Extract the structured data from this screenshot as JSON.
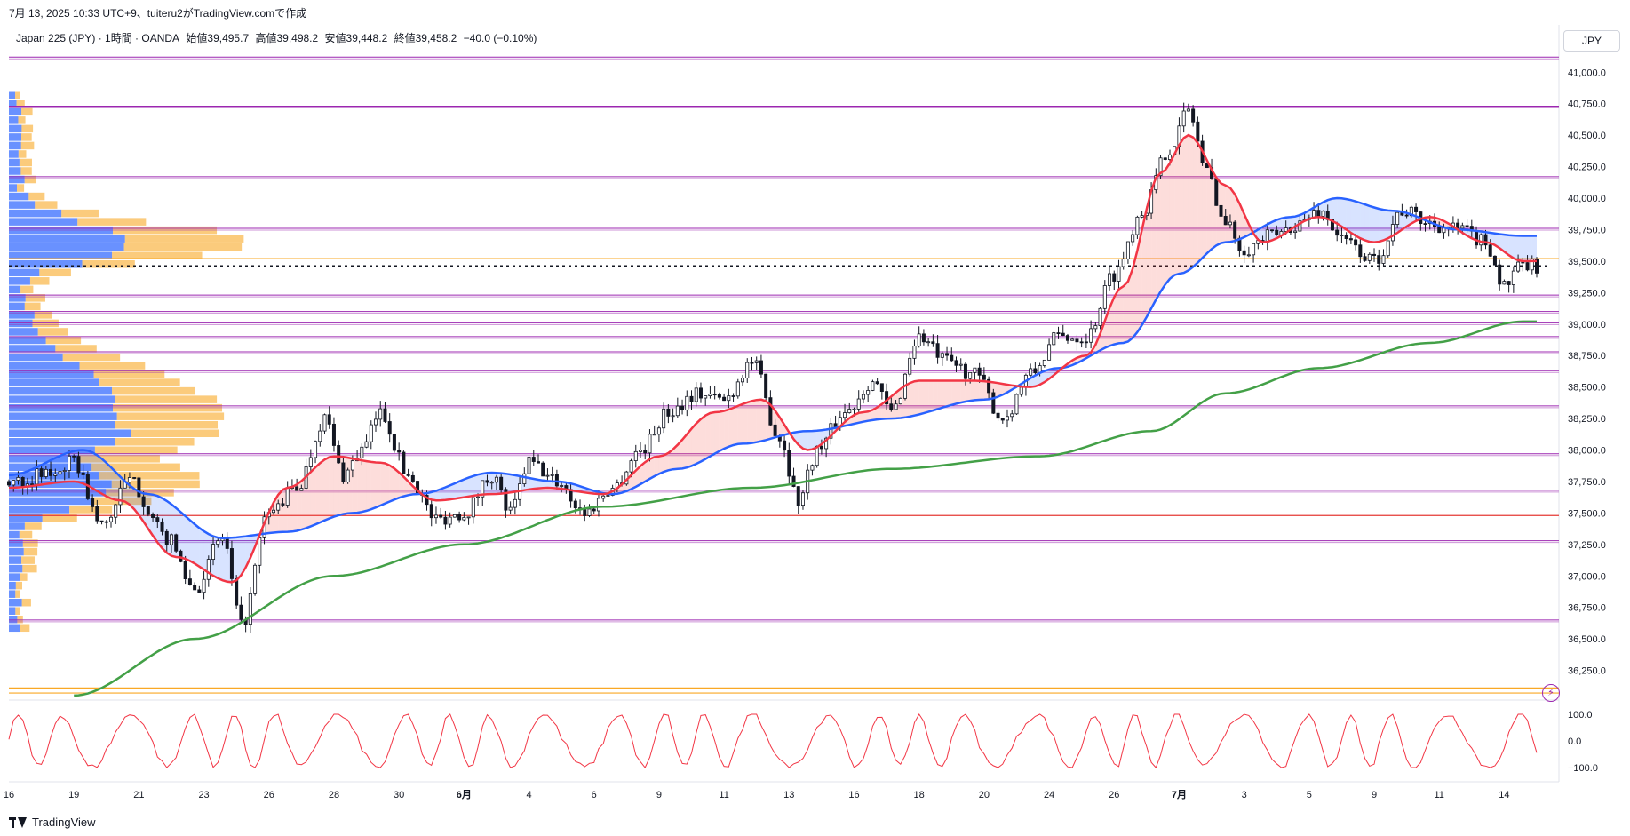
{
  "caption": "7月 13, 2025 10:33 UTC+9、tuiteru2がTradingView.comで作成",
  "legend": {
    "symbol": "Japan 225 (JPY) · 1時間 · OANDA",
    "open": "始値39,495.7",
    "high": "高値39,498.2",
    "low": "安値39,448.2",
    "close": "終値39,458.2",
    "change": "−40.0 (−0.10%)"
  },
  "currency_button": "JPY",
  "footer": {
    "brand": "TradingView"
  },
  "chart_data": {
    "type": "line",
    "price_ylim": [
      36000,
      41150
    ],
    "price_ticks": [
      "41,000.0",
      "40,750.0",
      "40,500.0",
      "40,250.0",
      "40,000.0",
      "39,750.0",
      "39,500.0",
      "39,250.0",
      "39,000.0",
      "38,750.0",
      "38,500.0",
      "38,250.0",
      "38,000.0",
      "37,750.0",
      "37,500.0",
      "37,250.0",
      "37,000.0",
      "36,750.0",
      "36,500.0",
      "36,250.0"
    ],
    "price_tick_values": [
      41000,
      40750,
      40500,
      40250,
      40000,
      39750,
      39500,
      39250,
      39000,
      38750,
      38500,
      38250,
      38000,
      37750,
      37500,
      37250,
      37000,
      36750,
      36500,
      36250
    ],
    "x_labels": [
      "16",
      "19",
      "21",
      "23",
      "26",
      "28",
      "30",
      "6月",
      "4",
      "6",
      "9",
      "11",
      "13",
      "16",
      "18",
      "20",
      "24",
      "26",
      "7月",
      "3",
      "5",
      "9",
      "11",
      "14"
    ],
    "x_label_index": [
      0,
      14,
      28,
      42,
      56,
      70,
      84,
      98,
      112,
      126,
      140,
      154,
      168,
      182,
      196,
      210,
      224,
      238,
      252,
      266,
      280,
      294,
      308,
      322
    ],
    "x_total_bars": 330,
    "close_series_anchors": [
      [
        0,
        37750
      ],
      [
        8,
        37800
      ],
      [
        14,
        37900
      ],
      [
        20,
        37400
      ],
      [
        26,
        37750
      ],
      [
        34,
        37300
      ],
      [
        40,
        36900
      ],
      [
        46,
        37300
      ],
      [
        50,
        36600
      ],
      [
        56,
        37500
      ],
      [
        62,
        37700
      ],
      [
        68,
        38250
      ],
      [
        72,
        37800
      ],
      [
        76,
        38000
      ],
      [
        80,
        38300
      ],
      [
        86,
        37800
      ],
      [
        92,
        37450
      ],
      [
        98,
        37500
      ],
      [
        104,
        37800
      ],
      [
        108,
        37500
      ],
      [
        112,
        37900
      ],
      [
        118,
        37750
      ],
      [
        124,
        37500
      ],
      [
        130,
        37700
      ],
      [
        136,
        38000
      ],
      [
        142,
        38300
      ],
      [
        148,
        38450
      ],
      [
        154,
        38400
      ],
      [
        160,
        38700
      ],
      [
        166,
        38100
      ],
      [
        170,
        37600
      ],
      [
        174,
        38000
      ],
      [
        180,
        38300
      ],
      [
        186,
        38550
      ],
      [
        190,
        38300
      ],
      [
        196,
        38900
      ],
      [
        202,
        38700
      ],
      [
        208,
        38600
      ],
      [
        214,
        38250
      ],
      [
        220,
        38600
      ],
      [
        226,
        38900
      ],
      [
        232,
        38900
      ],
      [
        238,
        39400
      ],
      [
        244,
        39900
      ],
      [
        250,
        40400
      ],
      [
        254,
        40700
      ],
      [
        258,
        40200
      ],
      [
        262,
        39800
      ],
      [
        266,
        39600
      ],
      [
        272,
        39700
      ],
      [
        278,
        39800
      ],
      [
        282,
        39900
      ],
      [
        288,
        39650
      ],
      [
        294,
        39500
      ],
      [
        300,
        39900
      ],
      [
        306,
        39800
      ],
      [
        312,
        39750
      ],
      [
        318,
        39650
      ],
      [
        322,
        39300
      ],
      [
        326,
        39460
      ]
    ],
    "ma_red_anchors": [
      [
        0,
        37700
      ],
      [
        14,
        37750
      ],
      [
        24,
        37600
      ],
      [
        36,
        37150
      ],
      [
        48,
        36950
      ],
      [
        60,
        37700
      ],
      [
        70,
        37950
      ],
      [
        80,
        37900
      ],
      [
        92,
        37600
      ],
      [
        104,
        37650
      ],
      [
        116,
        37700
      ],
      [
        128,
        37650
      ],
      [
        140,
        37950
      ],
      [
        152,
        38300
      ],
      [
        162,
        38400
      ],
      [
        172,
        38000
      ],
      [
        184,
        38300
      ],
      [
        196,
        38550
      ],
      [
        208,
        38550
      ],
      [
        220,
        38500
      ],
      [
        232,
        38750
      ],
      [
        240,
        39300
      ],
      [
        248,
        40200
      ],
      [
        254,
        40500
      ],
      [
        262,
        40100
      ],
      [
        270,
        39650
      ],
      [
        282,
        39850
      ],
      [
        294,
        39650
      ],
      [
        306,
        39850
      ],
      [
        318,
        39650
      ],
      [
        326,
        39500
      ]
    ],
    "ma_blue_anchors": [
      [
        0,
        37800
      ],
      [
        16,
        38000
      ],
      [
        30,
        37650
      ],
      [
        46,
        37300
      ],
      [
        60,
        37350
      ],
      [
        74,
        37500
      ],
      [
        88,
        37650
      ],
      [
        104,
        37820
      ],
      [
        118,
        37750
      ],
      [
        130,
        37650
      ],
      [
        144,
        37850
      ],
      [
        158,
        38050
      ],
      [
        172,
        38150
      ],
      [
        190,
        38250
      ],
      [
        210,
        38400
      ],
      [
        226,
        38650
      ],
      [
        240,
        38850
      ],
      [
        252,
        39400
      ],
      [
        262,
        39650
      ],
      [
        276,
        39850
      ],
      [
        286,
        40000
      ],
      [
        298,
        39900
      ],
      [
        312,
        39750
      ],
      [
        326,
        39700
      ]
    ],
    "ma_green_anchors": [
      [
        14,
        36050
      ],
      [
        40,
        36500
      ],
      [
        70,
        37000
      ],
      [
        98,
        37250
      ],
      [
        128,
        37550
      ],
      [
        160,
        37700
      ],
      [
        190,
        37850
      ],
      [
        222,
        37950
      ],
      [
        246,
        38150
      ],
      [
        262,
        38450
      ],
      [
        282,
        38650
      ],
      [
        306,
        38850
      ],
      [
        326,
        39020
      ]
    ],
    "horizontal_levels_purple": [
      41120,
      40730,
      40170,
      39760,
      39230,
      39100,
      39010,
      38900,
      38780,
      38630,
      38350,
      37970,
      37680,
      37280,
      36650
    ],
    "horizontal_levels_orange": [
      39520,
      36110,
      36070
    ],
    "red_level": 37480,
    "current_price_dotted": 39460,
    "oscillator": {
      "ylim": [
        -120,
        120
      ],
      "ticks": [
        "100.0",
        "0.0",
        "−100.0"
      ],
      "tick_values": [
        100,
        0,
        -100
      ]
    },
    "volume_profile": {
      "y_range": [
        36550,
        40850
      ],
      "bins": 64
    }
  }
}
